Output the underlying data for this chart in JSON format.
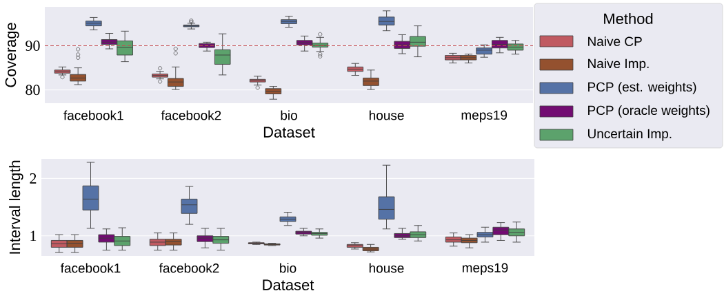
{
  "chart_data": [
    {
      "type": "box",
      "xlabel": "Dataset",
      "ylabel": "Coverage",
      "categories": [
        "facebook1",
        "facebook2",
        "bio",
        "house",
        "meps19"
      ],
      "ylim": [
        77,
        98.8
      ],
      "yticks": [
        80,
        90
      ],
      "grid": "y",
      "legend": "right",
      "legend_title": "Method",
      "ref_lines": [
        {
          "axis": "y",
          "value": 90,
          "color": "#c44e52",
          "line_style": "dashed"
        }
      ],
      "series": [
        {
          "name": "Naive CP",
          "color": "#c05a61",
          "boxes": [
            {
              "low": 83.4,
              "q1": 83.8,
              "median": 84.1,
              "q3": 84.5,
              "high": 85.2,
              "outliers": [
                82.9
              ]
            },
            {
              "low": 82.5,
              "q1": 82.9,
              "median": 83.3,
              "q3": 83.6,
              "high": 84.2,
              "outliers": [
                84.9,
                81.9
              ]
            },
            {
              "low": 81.1,
              "q1": 81.8,
              "median": 82.1,
              "q3": 82.4,
              "high": 83.1,
              "outliers": [
                80.5
              ]
            },
            {
              "low": 83.3,
              "q1": 84.2,
              "median": 84.7,
              "q3": 85.2,
              "high": 86.0
            },
            {
              "low": 86.1,
              "q1": 86.8,
              "median": 87.3,
              "q3": 87.8,
              "high": 88.3
            }
          ]
        },
        {
          "name": "Naive Imp.",
          "color": "#94512f",
          "boxes": [
            {
              "low": 81.2,
              "q1": 82.0,
              "median": 82.7,
              "q3": 83.5,
              "high": 85.0,
              "outliers": [
                89.2,
                88.0,
                87.3
              ]
            },
            {
              "low": 80.1,
              "q1": 80.8,
              "median": 81.8,
              "q3": 82.6,
              "high": 85.2,
              "outliers": [
                89.3,
                88.3
              ]
            },
            {
              "low": 77.9,
              "q1": 79.1,
              "median": 79.7,
              "q3": 80.3,
              "high": 80.8
            },
            {
              "low": 80.1,
              "q1": 81.0,
              "median": 82.0,
              "q3": 82.7,
              "high": 84.5
            },
            {
              "low": 86.1,
              "q1": 86.8,
              "median": 87.3,
              "q3": 87.8,
              "high": 88.1
            }
          ]
        },
        {
          "name": "PCP (est. weights)",
          "color": "#5572a6",
          "boxes": [
            {
              "low": 93.6,
              "q1": 94.5,
              "median": 95.1,
              "q3": 95.6,
              "high": 96.4
            },
            {
              "low": 93.8,
              "q1": 94.3,
              "median": 94.5,
              "q3": 94.7,
              "high": 95.1,
              "outliers": [
                95.7,
                95.4
              ]
            },
            {
              "low": 94.2,
              "q1": 95.0,
              "median": 95.5,
              "q3": 95.9,
              "high": 96.7
            },
            {
              "low": 93.4,
              "q1": 94.7,
              "median": 95.5,
              "q3": 96.5,
              "high": 97.9
            },
            {
              "low": 87.4,
              "q1": 88.1,
              "median": 89.0,
              "q3": 89.5,
              "high": 90.2
            }
          ]
        },
        {
          "name": "PCP (oracle weights)",
          "color": "#720c72",
          "boxes": [
            {
              "low": 89.3,
              "q1": 90.3,
              "median": 90.8,
              "q3": 91.4,
              "high": 92.8
            },
            {
              "low": 88.8,
              "q1": 89.6,
              "median": 90.1,
              "q3": 90.5,
              "high": 90.8
            },
            {
              "low": 88.8,
              "q1": 90.2,
              "median": 90.7,
              "q3": 91.2,
              "high": 92.2
            },
            {
              "low": 88.2,
              "q1": 89.4,
              "median": 90.2,
              "q3": 91.0,
              "high": 92.5
            },
            {
              "low": 88.4,
              "q1": 89.5,
              "median": 90.3,
              "q3": 91.2,
              "high": 91.9
            }
          ]
        },
        {
          "name": "Uncertain Imp.",
          "color": "#5ca26c",
          "boxes": [
            {
              "low": 86.4,
              "q1": 87.9,
              "median": 89.6,
              "q3": 91.1,
              "high": 93.3
            },
            {
              "low": 83.4,
              "q1": 85.8,
              "median": 87.9,
              "q3": 89.1,
              "high": 92.7
            },
            {
              "low": 88.7,
              "q1": 89.7,
              "median": 90.1,
              "q3": 90.6,
              "high": 91.9,
              "outliers": [
                92.6,
                88.1,
                87.6
              ]
            },
            {
              "low": 87.5,
              "q1": 89.9,
              "median": 90.8,
              "q3": 92.1,
              "high": 94.5
            },
            {
              "low": 88.1,
              "q1": 89.0,
              "median": 89.7,
              "q3": 90.4,
              "high": 91.2
            }
          ]
        }
      ]
    },
    {
      "type": "box",
      "xlabel": "Dataset",
      "ylabel": "Interval length",
      "categories": [
        "facebook1",
        "facebook2",
        "bio",
        "house",
        "meps19"
      ],
      "ylim": [
        0.65,
        2.34
      ],
      "yticks": [
        1,
        2
      ],
      "grid": "y",
      "series": [
        {
          "color": "#c05a61",
          "boxes": [
            {
              "low": 0.71,
              "q1": 0.8,
              "median": 0.86,
              "q3": 0.92,
              "high": 1.02
            },
            {
              "low": 0.75,
              "q1": 0.83,
              "median": 0.89,
              "q3": 0.94,
              "high": 1.05
            },
            {
              "low": 0.85,
              "q1": 0.86,
              "median": 0.87,
              "q3": 0.88,
              "high": 0.89
            },
            {
              "low": 0.77,
              "q1": 0.8,
              "median": 0.83,
              "q3": 0.85,
              "high": 0.88
            },
            {
              "low": 0.82,
              "q1": 0.89,
              "median": 0.93,
              "q3": 0.98,
              "high": 1.05
            }
          ]
        },
        {
          "color": "#94512f",
          "boxes": [
            {
              "low": 0.71,
              "q1": 0.8,
              "median": 0.87,
              "q3": 0.92,
              "high": 1.02
            },
            {
              "low": 0.75,
              "q1": 0.84,
              "median": 0.9,
              "q3": 0.94,
              "high": 1.05
            },
            {
              "low": 0.83,
              "q1": 0.84,
              "median": 0.85,
              "q3": 0.86,
              "high": 0.87
            },
            {
              "low": 0.72,
              "q1": 0.74,
              "median": 0.77,
              "q3": 0.8,
              "high": 0.85
            },
            {
              "low": 0.79,
              "q1": 0.88,
              "median": 0.92,
              "q3": 0.96,
              "high": 1.02
            }
          ]
        },
        {
          "color": "#5572a6",
          "boxes": [
            {
              "low": 1.13,
              "q1": 1.45,
              "median": 1.64,
              "q3": 1.87,
              "high": 2.28
            },
            {
              "low": 1.2,
              "q1": 1.39,
              "median": 1.54,
              "q3": 1.64,
              "high": 1.86
            },
            {
              "low": 1.18,
              "q1": 1.25,
              "median": 1.29,
              "q3": 1.33,
              "high": 1.41
            },
            {
              "low": 1.12,
              "q1": 1.29,
              "median": 1.46,
              "q3": 1.68,
              "high": 2.23
            },
            {
              "low": 0.89,
              "q1": 0.98,
              "median": 1.02,
              "q3": 1.06,
              "high": 1.15
            }
          ]
        },
        {
          "color": "#720c72",
          "boxes": [
            {
              "low": 0.75,
              "q1": 0.89,
              "median": 0.96,
              "q3": 1.02,
              "high": 1.12
            },
            {
              "low": 0.79,
              "q1": 0.9,
              "median": 0.96,
              "q3": 1.0,
              "high": 1.13
            },
            {
              "low": 1.0,
              "q1": 1.03,
              "median": 1.06,
              "q3": 1.08,
              "high": 1.13
            },
            {
              "low": 0.94,
              "q1": 0.97,
              "median": 1.0,
              "q3": 1.04,
              "high": 1.13
            },
            {
              "low": 0.92,
              "q1": 1.02,
              "median": 1.1,
              "q3": 1.15,
              "high": 1.23
            }
          ]
        },
        {
          "color": "#5ca26c",
          "boxes": [
            {
              "low": 0.75,
              "q1": 0.83,
              "median": 0.91,
              "q3": 0.99,
              "high": 1.14
            },
            {
              "low": 0.75,
              "q1": 0.87,
              "median": 0.93,
              "q3": 0.99,
              "high": 1.13
            },
            {
              "low": 0.96,
              "q1": 1.01,
              "median": 1.04,
              "q3": 1.06,
              "high": 1.12
            },
            {
              "low": 0.91,
              "q1": 0.97,
              "median": 1.02,
              "q3": 1.07,
              "high": 1.18
            },
            {
              "low": 0.89,
              "q1": 1.0,
              "median": 1.06,
              "q3": 1.12,
              "high": 1.24
            }
          ]
        }
      ]
    }
  ]
}
